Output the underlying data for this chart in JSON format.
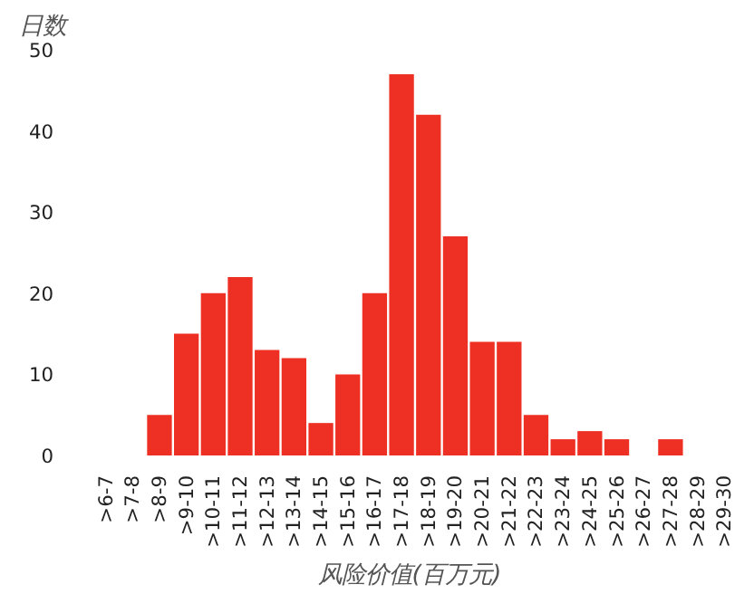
{
  "chart_data": {
    "type": "bar",
    "ylabel": "日数",
    "xlabel": "风险价值(百万元)",
    "categories": [
      ">6-7",
      ">7-8",
      ">8-9",
      ">9-10",
      ">10-11",
      ">11-12",
      ">12-13",
      ">13-14",
      ">14-15",
      ">15-16",
      ">16-17",
      ">17-18",
      ">18-19",
      ">19-20",
      ">20-21",
      ">21-22",
      ">22-23",
      ">23-24",
      ">24-25",
      ">25-26",
      ">26-27",
      ">27-28",
      ">28-29",
      ">29-30"
    ],
    "values": [
      0,
      0,
      5,
      15,
      20,
      22,
      13,
      12,
      4,
      10,
      20,
      47,
      42,
      27,
      14,
      14,
      5,
      2,
      3,
      2,
      0,
      2,
      0,
      0
    ],
    "color": "#ee3024",
    "ylim": [
      0,
      50
    ],
    "yticks": [
      0,
      10,
      20,
      30,
      40,
      50
    ],
    "grid": false
  }
}
